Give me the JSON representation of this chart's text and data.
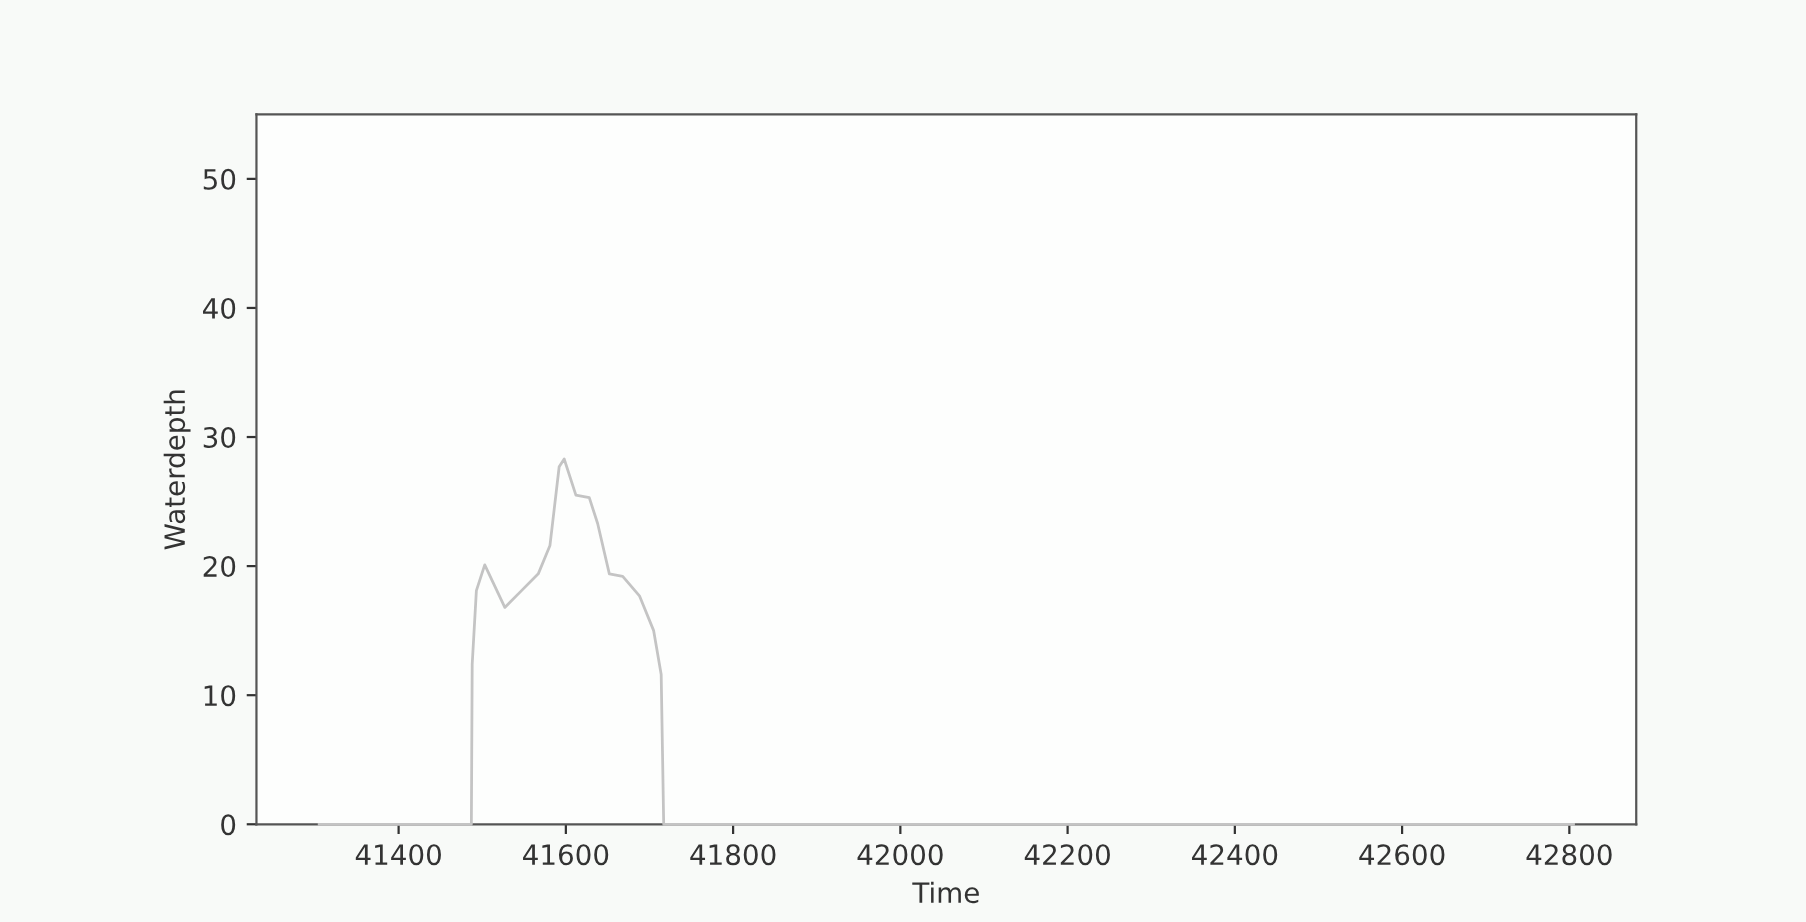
{
  "chart_data": {
    "type": "line",
    "xlabel": "Time",
    "ylabel": "Waterdepth",
    "xlim": [
      41230,
      42880
    ],
    "ylim": [
      0,
      55
    ],
    "xticks": [
      41400,
      41600,
      41800,
      42000,
      42200,
      42400,
      42600,
      42800
    ],
    "yticks": [
      0,
      10,
      20,
      30,
      40,
      50
    ],
    "grid": false,
    "legend": false,
    "marker": "none",
    "line_style": "solid",
    "series": [
      {
        "color": "#c4c4c4",
        "x": [
          41305,
          41487,
          41488,
          41493,
          41503,
          41527,
          41547,
          41567,
          41581,
          41592,
          41598,
          41612,
          41628,
          41638,
          41652,
          41668,
          41688,
          41705,
          41714,
          41717,
          42805
        ],
        "values": [
          0,
          0,
          12.4,
          18.1,
          20.1,
          16.8,
          18.1,
          19.4,
          21.6,
          27.7,
          28.3,
          25.5,
          25.3,
          23.3,
          19.4,
          19.2,
          17.7,
          15.0,
          11.6,
          0,
          0
        ]
      }
    ]
  }
}
